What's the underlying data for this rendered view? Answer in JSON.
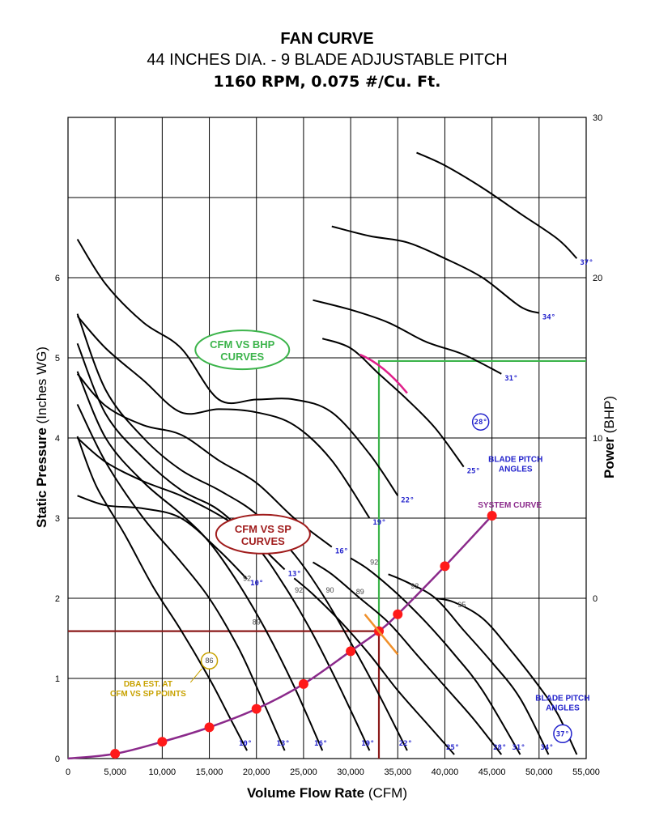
{
  "chart_data": {
    "type": "line",
    "title": "FAN CURVE",
    "subtitle": "44 INCHES DIA. - 9 BLADE ADJUSTABLE PITCH",
    "subtitle2": "1160 RPM, 0.075 #/Cu. Ft.",
    "xlabel_main": "Volume Flow Rate",
    "xlabel_unit": "(CFM)",
    "ylabel_main": "Static Pressure",
    "ylabel_unit": "(Inches WG)",
    "y2label_main": "Power",
    "y2label_unit": "(BHP)",
    "xlim": [
      0,
      55000
    ],
    "ylim": [
      0,
      8
    ],
    "y2lim": [
      -10,
      30
    ],
    "grid": true,
    "x_ticks": [
      "0",
      "5,000",
      "10,000",
      "15,000",
      "20,000",
      "25,000",
      "30,000",
      "35,000",
      "40,000",
      "45,000",
      "50,000",
      "55,000"
    ],
    "y_ticks": [
      "0",
      "1",
      "2",
      "3",
      "4",
      "5",
      "6"
    ],
    "y2_ticks": [
      "0",
      "10",
      "20",
      "30"
    ],
    "sp_curves": [
      {
        "name": "10°",
        "x": [
          1000,
          3000,
          6000,
          9000,
          12000,
          15000,
          17000,
          19000
        ],
        "y": [
          4.02,
          3.4,
          2.8,
          2.15,
          1.6,
          1.0,
          0.55,
          0.1
        ]
      },
      {
        "name": "13°",
        "x": [
          1000,
          4000,
          8000,
          12000,
          15000,
          18000,
          20000,
          23000
        ],
        "y": [
          4.42,
          3.7,
          3.0,
          2.45,
          2.0,
          1.4,
          0.9,
          0.1
        ]
      },
      {
        "name": "16°",
        "x": [
          1000,
          4000,
          8000,
          12000,
          15000,
          18000,
          21000,
          24000,
          27000
        ],
        "y": [
          4.83,
          4.0,
          3.45,
          3.05,
          2.7,
          2.2,
          1.6,
          0.9,
          0.1
        ]
      },
      {
        "name": "19°",
        "x": [
          1000,
          4000,
          8000,
          12000,
          16000,
          20000,
          23000,
          26000,
          29000,
          32000
        ],
        "y": [
          5.18,
          4.3,
          3.75,
          3.35,
          3.1,
          2.65,
          2.15,
          1.55,
          0.85,
          0.1
        ]
      },
      {
        "name": "22°",
        "x": [
          1000,
          4000,
          8000,
          12000,
          16000,
          20000,
          24000,
          27000,
          30000,
          33000,
          36000
        ],
        "y": [
          5.55,
          4.6,
          4.0,
          3.6,
          3.35,
          3.05,
          2.55,
          2.05,
          1.45,
          0.8,
          0.1
        ]
      },
      {
        "name": "25°",
        "x": [
          24000,
          26000,
          29000,
          32000,
          35000,
          38000,
          41000
        ],
        "y": [
          2.25,
          2.05,
          1.7,
          1.3,
          0.85,
          0.45,
          0.05
        ]
      },
      {
        "name": "28°",
        "x": [
          26000,
          28000,
          31000,
          34000,
          37000,
          40000,
          43000,
          46000
        ],
        "y": [
          2.45,
          2.3,
          2.0,
          1.7,
          1.3,
          0.9,
          0.5,
          0.05
        ]
      },
      {
        "name": "31°",
        "x": [
          30000,
          32000,
          35000,
          38000,
          41000,
          44000,
          48000
        ],
        "y": [
          2.5,
          2.35,
          2.05,
          1.7,
          1.3,
          0.85,
          0.05
        ]
      },
      {
        "name": "34°",
        "x": [
          34000,
          36000,
          39000,
          42000,
          45000,
          48000,
          51000
        ],
        "y": [
          2.3,
          2.2,
          2.0,
          1.6,
          1.2,
          0.75,
          0.05
        ]
      },
      {
        "name": "37°",
        "x": [
          39000,
          41000,
          44000,
          47000,
          50000,
          52000,
          54000
        ],
        "y": [
          2.0,
          1.95,
          1.75,
          1.35,
          0.9,
          0.55,
          0.05
        ]
      }
    ],
    "bhp_curves": [
      {
        "name": "10°",
        "x": [
          1000,
          4000,
          8000,
          12000,
          16000,
          19000
        ],
        "y": [
          6.4,
          5.8,
          5.6,
          5.0,
          3.0,
          1.2
        ]
      },
      {
        "name": "13°",
        "x": [
          1000,
          4000,
          8000,
          12000,
          16000,
          19000,
          23000
        ],
        "y": [
          10.0,
          8.5,
          7.3,
          6.4,
          5.2,
          4.0,
          1.8
        ]
      },
      {
        "name": "16°",
        "x": [
          1000,
          4000,
          8000,
          12000,
          16000,
          20000,
          24000,
          28000
        ],
        "y": [
          14.0,
          12.0,
          10.8,
          10.2,
          8.6,
          7.2,
          5.0,
          3.2
        ]
      },
      {
        "name": "19°",
        "x": [
          1000,
          4000,
          8000,
          12000,
          16000,
          20000,
          24000,
          28000,
          32000
        ],
        "y": [
          17.6,
          15.6,
          13.6,
          11.6,
          11.8,
          11.6,
          10.8,
          8.6,
          5.0
        ]
      },
      {
        "name": "22°",
        "x": [
          1000,
          4000,
          8000,
          12000,
          16000,
          20000,
          24000,
          28000,
          32000,
          35000
        ],
        "y": [
          22.4,
          19.6,
          17.2,
          15.6,
          12.4,
          12.4,
          12.4,
          11.6,
          9.0,
          6.4
        ]
      },
      {
        "name": "25°",
        "x": [
          27000,
          30000,
          33000,
          36000,
          39000,
          42000
        ],
        "y": [
          16.2,
          15.6,
          14.0,
          12.4,
          10.6,
          8.2
        ]
      },
      {
        "name": "31°",
        "x": [
          26000,
          30000,
          34000,
          38000,
          42000,
          46000
        ],
        "y": [
          18.6,
          18.0,
          17.2,
          16.0,
          15.2,
          14.0
        ]
      },
      {
        "name": "34°",
        "x": [
          28000,
          32000,
          36000,
          40000,
          44000,
          48000,
          50000
        ],
        "y": [
          23.2,
          22.6,
          22.2,
          21.2,
          20.0,
          18.2,
          17.8
        ]
      },
      {
        "name": "37°",
        "x": [
          37000,
          40000,
          44000,
          48000,
          52000,
          54000
        ],
        "y": [
          27.8,
          27.0,
          25.6,
          24.0,
          22.4,
          21.2
        ]
      }
    ],
    "system_curve": {
      "label": "SYSTEM CURVE",
      "points_x": [
        5000,
        10000,
        15000,
        20000,
        25000,
        30000,
        33000,
        35000,
        40000,
        45000
      ],
      "points_y": [
        0.06,
        0.21,
        0.39,
        0.62,
        0.93,
        1.34,
        1.59,
        1.8,
        2.4,
        3.03
      ]
    },
    "operating_point": {
      "x": 33000,
      "sp": 1.59,
      "bhp": 14.8
    },
    "dba_labels": [
      {
        "text": "92",
        "x": 19000,
        "y": 2.25
      },
      {
        "text": "92",
        "x": 24500,
        "y": 2.1
      },
      {
        "text": "90",
        "x": 27800,
        "y": 2.1
      },
      {
        "text": "89",
        "x": 31000,
        "y": 2.08
      },
      {
        "text": "92",
        "x": 32500,
        "y": 2.45
      },
      {
        "text": "92",
        "x": 36800,
        "y": 2.15
      },
      {
        "text": "95",
        "x": 41800,
        "y": 1.92
      },
      {
        "text": "89",
        "x": 20000,
        "y": 1.7
      },
      {
        "text": "86",
        "x": 17000,
        "y": 1.55
      }
    ],
    "annotations": {
      "bhp_box": [
        "CFM VS BHP",
        "CURVES"
      ],
      "sp_box": [
        "CFM VS SP",
        "CURVES"
      ],
      "blade_pitch_top": [
        "BLADE PITCH",
        "ANGLES"
      ],
      "blade_pitch_top_circle": "28°",
      "blade_pitch_bottom": [
        "BLADE PITCH",
        "ANGLES"
      ],
      "blade_pitch_bottom_circle": "37°",
      "dba_note": [
        "DBA EST. AT",
        "CFM VS SP POINTS"
      ],
      "dba_circle": "86"
    },
    "colors": {
      "curve": "#000000",
      "system_curve": "#8b2a8b",
      "points": "#ff1a1a",
      "sp_guide": "#8b1a1a",
      "bhp_guide": "#3cb44b",
      "pitch_text": "#2222cc",
      "bhp_box": "#3cb44b",
      "sp_box": "#a01c1c",
      "dba_note": "#c8a200",
      "pink_marker": "#e0208a",
      "orange_marker": "#f0902a"
    }
  }
}
